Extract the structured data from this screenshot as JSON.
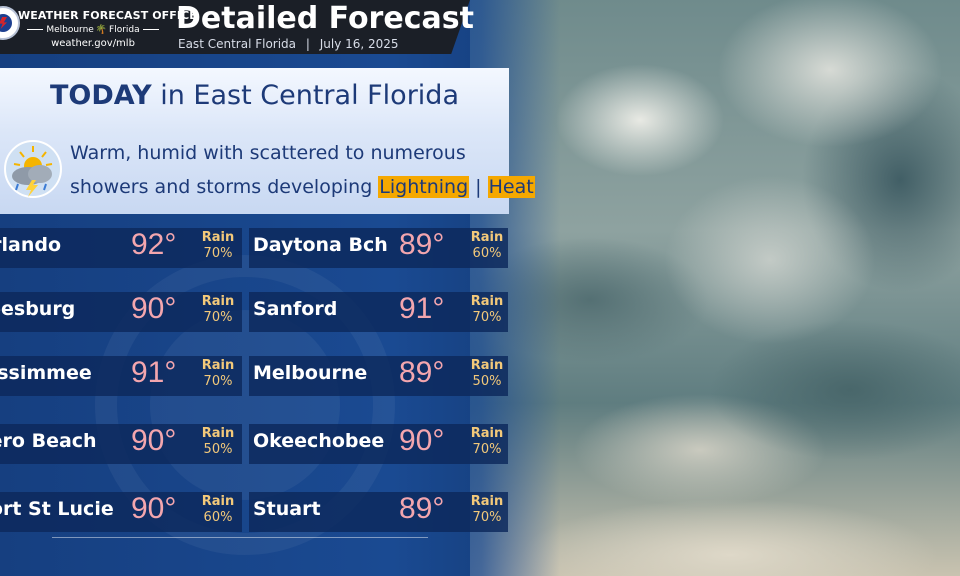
{
  "header": {
    "office_title": "WEATHER FORECAST OFFICE",
    "office_city_left": "Melbourne",
    "office_city_right": "Florida",
    "office_url": "weather.gov/mlb",
    "title": "Detailed Forecast",
    "region": "East Central Florida",
    "separator": "|",
    "date": "July 16, 2025"
  },
  "today": {
    "heading_bold": "TODAY",
    "heading_rest": " in East Central Florida",
    "summary_line1": "Warm, humid with scattered to numerous",
    "summary_line2": "showers and storms developing ",
    "hazard1": "Lightning",
    "hazard_sep": " | ",
    "hazard2": "Heat",
    "icon": "thunderstorm-sun-icon"
  },
  "colors": {
    "header_bg": "#1b1f27",
    "panel_blue": "#1a4a92",
    "row_bg": "#0c285c",
    "temp": "#f3a6ae",
    "rain": "#f3c97a",
    "hazard_highlight": "#f5a800",
    "heading_text": "#1d3a78"
  },
  "forecasts": [
    {
      "left": {
        "city": "Orlando",
        "temp": "92°",
        "rain_label": "Rain",
        "rain_pct": "70%"
      },
      "right": {
        "city": "Daytona Bch",
        "temp": "89°",
        "rain_label": "Rain",
        "rain_pct": "60%"
      }
    },
    {
      "left": {
        "city": "Leesburg",
        "temp": "90°",
        "rain_label": "Rain",
        "rain_pct": "70%"
      },
      "right": {
        "city": "Sanford",
        "temp": "91°",
        "rain_label": "Rain",
        "rain_pct": "70%"
      }
    },
    {
      "left": {
        "city": "Kissimmee",
        "temp": "91°",
        "rain_label": "Rain",
        "rain_pct": "70%"
      },
      "right": {
        "city": "Melbourne",
        "temp": "89°",
        "rain_label": "Rain",
        "rain_pct": "50%"
      }
    },
    {
      "left": {
        "city": "Vero Beach",
        "temp": "90°",
        "rain_label": "Rain",
        "rain_pct": "50%"
      },
      "right": {
        "city": "Okeechobee",
        "temp": "90°",
        "rain_label": "Rain",
        "rain_pct": "70%"
      }
    },
    {
      "left": {
        "city": "Port St Lucie",
        "temp": "90°",
        "rain_label": "Rain",
        "rain_pct": "60%"
      },
      "right": {
        "city": "Stuart",
        "temp": "89°",
        "rain_label": "Rain",
        "rain_pct": "70%"
      }
    }
  ]
}
